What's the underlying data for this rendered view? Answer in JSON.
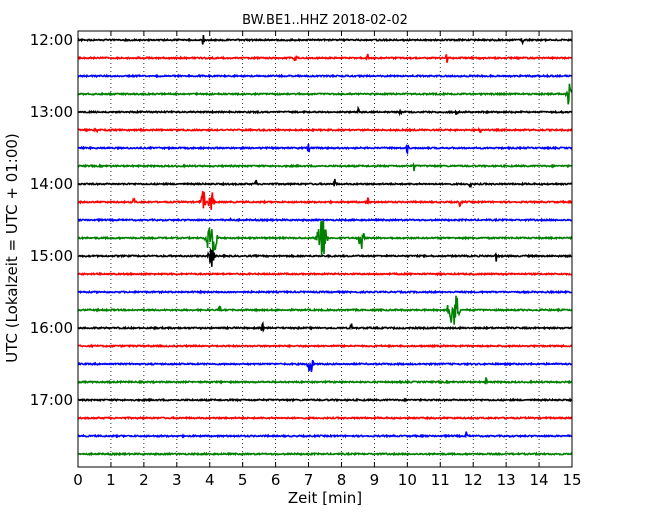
{
  "chart_data": {
    "type": "line",
    "title": "BW.BE1..HHZ 2018-02-02",
    "xlabel": "Zeit  [min]",
    "ylabel": "UTC (Lokalzeit = UTC + 01:00)",
    "xlim": [
      0,
      15
    ],
    "x_ticks": [
      "0",
      "1",
      "2",
      "3",
      "4",
      "5",
      "6",
      "7",
      "8",
      "9",
      "10",
      "11",
      "12",
      "13",
      "14",
      "15"
    ],
    "y_tick_labels": [
      "12:00",
      "13:00",
      "14:00",
      "15:00",
      "16:00",
      "17:00"
    ],
    "grid": "vertical dotted",
    "colors": [
      "#000000",
      "#ff0000",
      "#0000ff",
      "#008000"
    ],
    "trace_start_times_utc": [
      "12:00",
      "12:15",
      "12:30",
      "12:45",
      "13:00",
      "13:15",
      "13:30",
      "13:45",
      "14:00",
      "14:15",
      "14:30",
      "14:45",
      "15:00",
      "15:15",
      "15:30",
      "15:45",
      "16:00",
      "16:15",
      "16:30",
      "16:45",
      "17:00",
      "17:15",
      "17:30",
      "17:45"
    ],
    "events": [
      {
        "trace": "12:00",
        "minute": 3.8,
        "amplitude": "small"
      },
      {
        "trace": "12:00",
        "minute": 13.5,
        "amplitude": "small"
      },
      {
        "trace": "12:15",
        "minute": 6.6,
        "amplitude": "small"
      },
      {
        "trace": "12:15",
        "minute": 8.8,
        "amplitude": "small"
      },
      {
        "trace": "12:15",
        "minute": 11.2,
        "amplitude": "small"
      },
      {
        "trace": "12:45",
        "minute": 14.9,
        "amplitude": "medium"
      },
      {
        "trace": "13:00",
        "minute": 8.5,
        "amplitude": "small"
      },
      {
        "trace": "13:00",
        "minute": 9.8,
        "amplitude": "small"
      },
      {
        "trace": "13:00",
        "minute": 11.5,
        "amplitude": "small"
      },
      {
        "trace": "13:15",
        "minute": 0.55,
        "amplitude": "small"
      },
      {
        "trace": "13:15",
        "minute": 12.2,
        "amplitude": "small"
      },
      {
        "trace": "13:30",
        "minute": 7.0,
        "amplitude": "small"
      },
      {
        "trace": "13:30",
        "minute": 10.0,
        "amplitude": "small"
      },
      {
        "trace": "13:45",
        "minute": 10.2,
        "amplitude": "small"
      },
      {
        "trace": "14:00",
        "minute": 5.4,
        "amplitude": "small"
      },
      {
        "trace": "14:00",
        "minute": 7.8,
        "amplitude": "small"
      },
      {
        "trace": "14:00",
        "minute": 11.9,
        "amplitude": "small"
      },
      {
        "trace": "14:15",
        "minute": 1.7,
        "amplitude": "small"
      },
      {
        "trace": "14:15",
        "minute": 3.8,
        "amplitude": "medium"
      },
      {
        "trace": "14:15",
        "minute": 4.05,
        "amplitude": "medium"
      },
      {
        "trace": "14:15",
        "minute": 8.8,
        "amplitude": "small"
      },
      {
        "trace": "14:15",
        "minute": 11.6,
        "amplitude": "small"
      },
      {
        "trace": "14:30",
        "minute": 4.6,
        "amplitude": "small"
      },
      {
        "trace": "14:45",
        "minute": 4.05,
        "amplitude": "large"
      },
      {
        "trace": "14:45",
        "minute": 7.4,
        "amplitude": "large"
      },
      {
        "trace": "14:45",
        "minute": 8.6,
        "amplitude": "medium"
      },
      {
        "trace": "15:00",
        "minute": 4.05,
        "amplitude": "medium"
      },
      {
        "trace": "15:00",
        "minute": 12.7,
        "amplitude": "small"
      },
      {
        "trace": "15:45",
        "minute": 4.3,
        "amplitude": "small"
      },
      {
        "trace": "15:45",
        "minute": 11.4,
        "amplitude": "large"
      },
      {
        "trace": "16:00",
        "minute": 5.6,
        "amplitude": "small"
      },
      {
        "trace": "16:00",
        "minute": 8.3,
        "amplitude": "small"
      },
      {
        "trace": "16:30",
        "minute": 7.05,
        "amplitude": "medium"
      },
      {
        "trace": "16:45",
        "minute": 12.4,
        "amplitude": "small"
      },
      {
        "trace": "17:30",
        "minute": 11.8,
        "amplitude": "small"
      }
    ]
  }
}
